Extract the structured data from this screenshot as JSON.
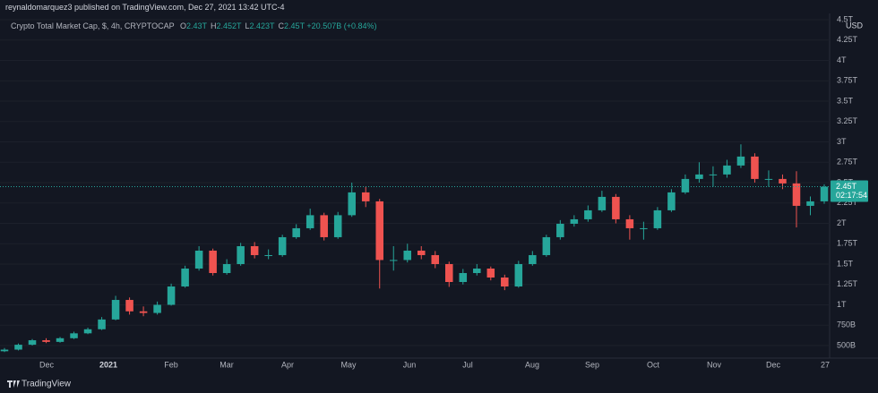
{
  "header": {
    "publish_line": "reynaldomarquez3 published on TradingView.com, Dec 27, 2021 13:42 UTC-4",
    "symbol": "Crypto Total Market Cap, $, 4h, CRYPTOCAP",
    "ohlc": [
      {
        "key": "O",
        "value": "2.43T"
      },
      {
        "key": "H",
        "value": "2.452T"
      },
      {
        "key": "L",
        "value": "2.423T"
      },
      {
        "key": "C",
        "value": "2.45T"
      }
    ],
    "change": "+20.507B (+0.84%)"
  },
  "footer": {
    "brand": "TradingView"
  },
  "chart_data": {
    "type": "candlestick",
    "currency_label": "USD",
    "open": [
      430,
      450,
      510,
      565,
      545,
      590,
      650,
      700,
      820,
      1060,
      920,
      900,
      1000,
      1225,
      1445,
      1665,
      1390,
      1500,
      1720,
      1610,
      1610,
      1830,
      1940,
      2100,
      1830,
      2100,
      2380,
      2270,
      1550,
      1550,
      1665,
      1610,
      1500,
      1280,
      1390,
      1445,
      1335,
      1225,
      1500,
      1610,
      1830,
      1995,
      2050,
      2160,
      2325,
      2050,
      1940,
      1940,
      2160,
      2380,
      2545,
      2600,
      2600,
      2710,
      2820,
      2545,
      2545,
      2490,
      2215,
      2270
    ],
    "high": [
      470,
      525,
      580,
      590,
      605,
      670,
      720,
      850,
      1110,
      1090,
      980,
      1040,
      1260,
      1480,
      1720,
      1690,
      1560,
      1760,
      1770,
      1680,
      1860,
      1990,
      2180,
      2130,
      2140,
      2500,
      2450,
      2300,
      1720,
      1750,
      1720,
      1660,
      1530,
      1440,
      1500,
      1470,
      1370,
      1540,
      1660,
      1860,
      2040,
      2100,
      2220,
      2400,
      2360,
      2100,
      2020,
      2200,
      2420,
      2600,
      2750,
      2700,
      2780,
      2970,
      2860,
      2650,
      2600,
      2640,
      2330,
      2480
    ],
    "low": [
      420,
      440,
      500,
      530,
      535,
      580,
      640,
      690,
      810,
      880,
      860,
      880,
      990,
      1210,
      1420,
      1360,
      1370,
      1480,
      1570,
      1560,
      1590,
      1810,
      1920,
      1790,
      1810,
      2080,
      2200,
      1200,
      1420,
      1520,
      1560,
      1450,
      1220,
      1250,
      1360,
      1300,
      1180,
      1210,
      1480,
      1590,
      1800,
      1960,
      2020,
      2140,
      2000,
      1800,
      1800,
      1920,
      2140,
      2360,
      2500,
      2450,
      2560,
      2680,
      2500,
      2450,
      2420,
      1950,
      2100,
      2240
    ],
    "close": [
      450,
      510,
      565,
      545,
      590,
      650,
      700,
      820,
      1060,
      920,
      900,
      1000,
      1225,
      1445,
      1665,
      1390,
      1500,
      1720,
      1610,
      1610,
      1830,
      1940,
      2100,
      1830,
      2100,
      2380,
      2270,
      1550,
      1550,
      1665,
      1610,
      1500,
      1280,
      1390,
      1445,
      1335,
      1225,
      1500,
      1610,
      1830,
      1995,
      2050,
      2160,
      2325,
      2050,
      1940,
      1940,
      2160,
      2380,
      2545,
      2600,
      2600,
      2710,
      2820,
      2545,
      2545,
      2490,
      2215,
      2270,
      2450
    ],
    "up_color": "#26a69a",
    "down_color": "#ef5350",
    "ylim": [
      346,
      4577
    ],
    "yticks": [
      {
        "value": 500,
        "label": "500B"
      },
      {
        "value": 750,
        "label": "750B"
      },
      {
        "value": 1000,
        "label": "1T"
      },
      {
        "value": 1250,
        "label": "1.25T"
      },
      {
        "value": 1500,
        "label": "1.5T"
      },
      {
        "value": 1750,
        "label": "1.75T"
      },
      {
        "value": 2000,
        "label": "2T"
      },
      {
        "value": 2250,
        "label": "2.25T"
      },
      {
        "value": 2500,
        "label": "2.5T"
      },
      {
        "value": 2750,
        "label": "2.75T"
      },
      {
        "value": 3000,
        "label": "3T"
      },
      {
        "value": 3250,
        "label": "3.25T"
      },
      {
        "value": 3500,
        "label": "3.5T"
      },
      {
        "value": 3750,
        "label": "3.75T"
      },
      {
        "value": 4000,
        "label": "4T"
      },
      {
        "value": 4250,
        "label": "4.25T"
      },
      {
        "value": 4500,
        "label": "4.5T"
      }
    ],
    "xtick_labels": [
      "Dec",
      "2021",
      "Feb",
      "Mar",
      "Apr",
      "May",
      "Jun",
      "Jul",
      "Aug",
      "Sep",
      "Oct",
      "Nov",
      "Dec",
      "27"
    ],
    "last_price": 2450,
    "last_price_label": "2.45T",
    "countdown": "02:17:54"
  }
}
